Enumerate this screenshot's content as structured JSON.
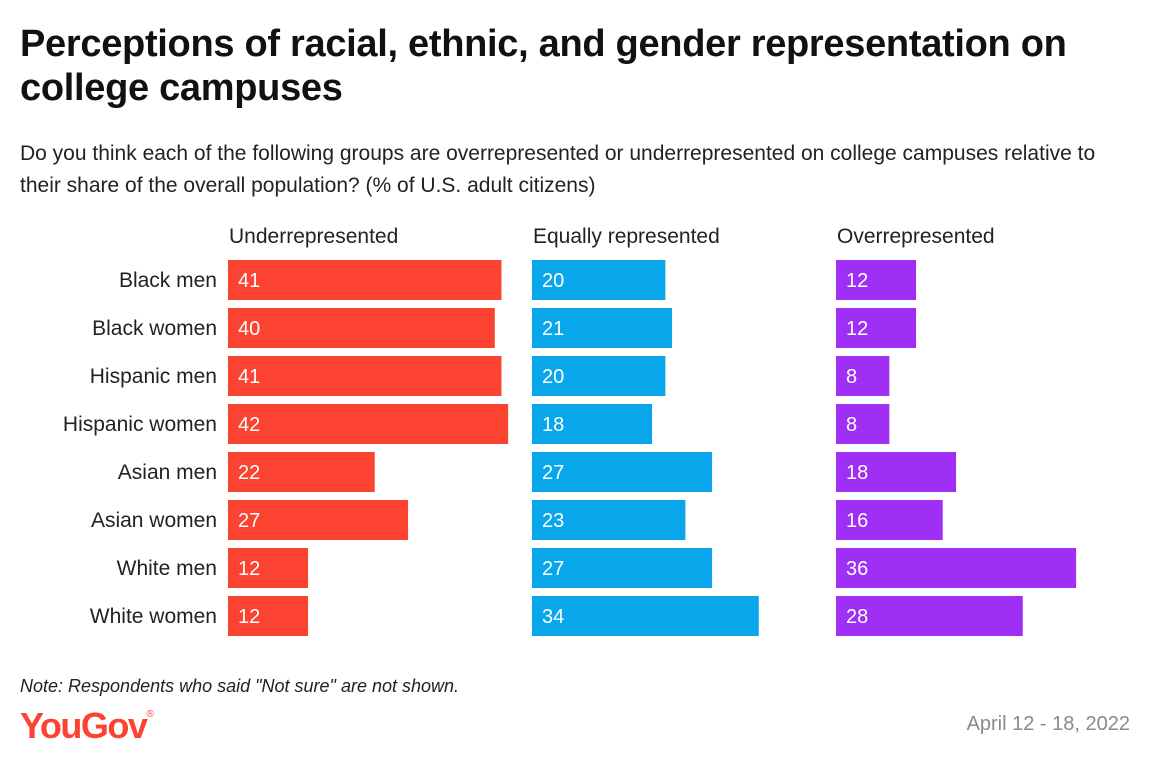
{
  "title": "Perceptions of racial, ethnic, and gender representation on college campuses",
  "subtitle": "Do you think each of the following groups are overrepresented or underrepresented on college campuses relative to their share of the overall population? (% of U.S. adult citizens)",
  "note": "Note: Respondents who said \"Not sure\" are not shown.",
  "logo": {
    "text": "YouGov",
    "mark": "®"
  },
  "date": "April 12 - 18, 2022",
  "colors": {
    "underrepresented": "#fc4231",
    "equally": "#08a6ea",
    "overrepresented": "#9f2ff5",
    "logo": "#fc4231"
  },
  "chart_data": {
    "type": "bar",
    "orientation": "horizontal",
    "layout": "small-multiples",
    "categories": [
      "Black men",
      "Black women",
      "Hispanic men",
      "Hispanic women",
      "Asian men",
      "Asian women",
      "White men",
      "White women"
    ],
    "series": [
      {
        "name": "Underrepresented",
        "color": "#fc4231",
        "values": [
          41,
          40,
          41,
          42,
          22,
          27,
          12,
          12
        ]
      },
      {
        "name": "Equally represented",
        "color": "#08a6ea",
        "values": [
          20,
          21,
          20,
          18,
          27,
          23,
          27,
          34
        ]
      },
      {
        "name": "Overrepresented",
        "color": "#9f2ff5",
        "values": [
          12,
          12,
          8,
          8,
          18,
          16,
          36,
          28
        ]
      }
    ],
    "data_labels": true,
    "grid": false
  }
}
